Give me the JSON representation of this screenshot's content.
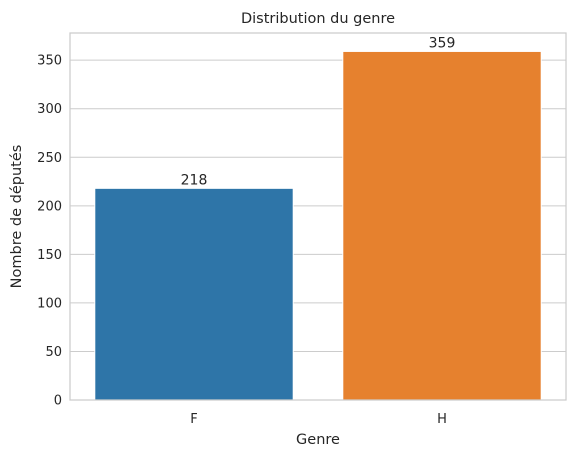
{
  "chart_data": {
    "type": "bar",
    "title": "Distribution du genre",
    "xlabel": "Genre",
    "ylabel": "Nombre de députés",
    "categories": [
      "F",
      "H"
    ],
    "values": [
      218,
      359
    ],
    "data_labels": [
      "218",
      "359"
    ],
    "colors": [
      "#2e75a8",
      "#e6812e"
    ],
    "ylim": [
      0,
      378
    ],
    "yticks": [
      0,
      50,
      100,
      150,
      200,
      250,
      300,
      350
    ],
    "grid": "y-axis horizontal lines",
    "legend": "none"
  }
}
